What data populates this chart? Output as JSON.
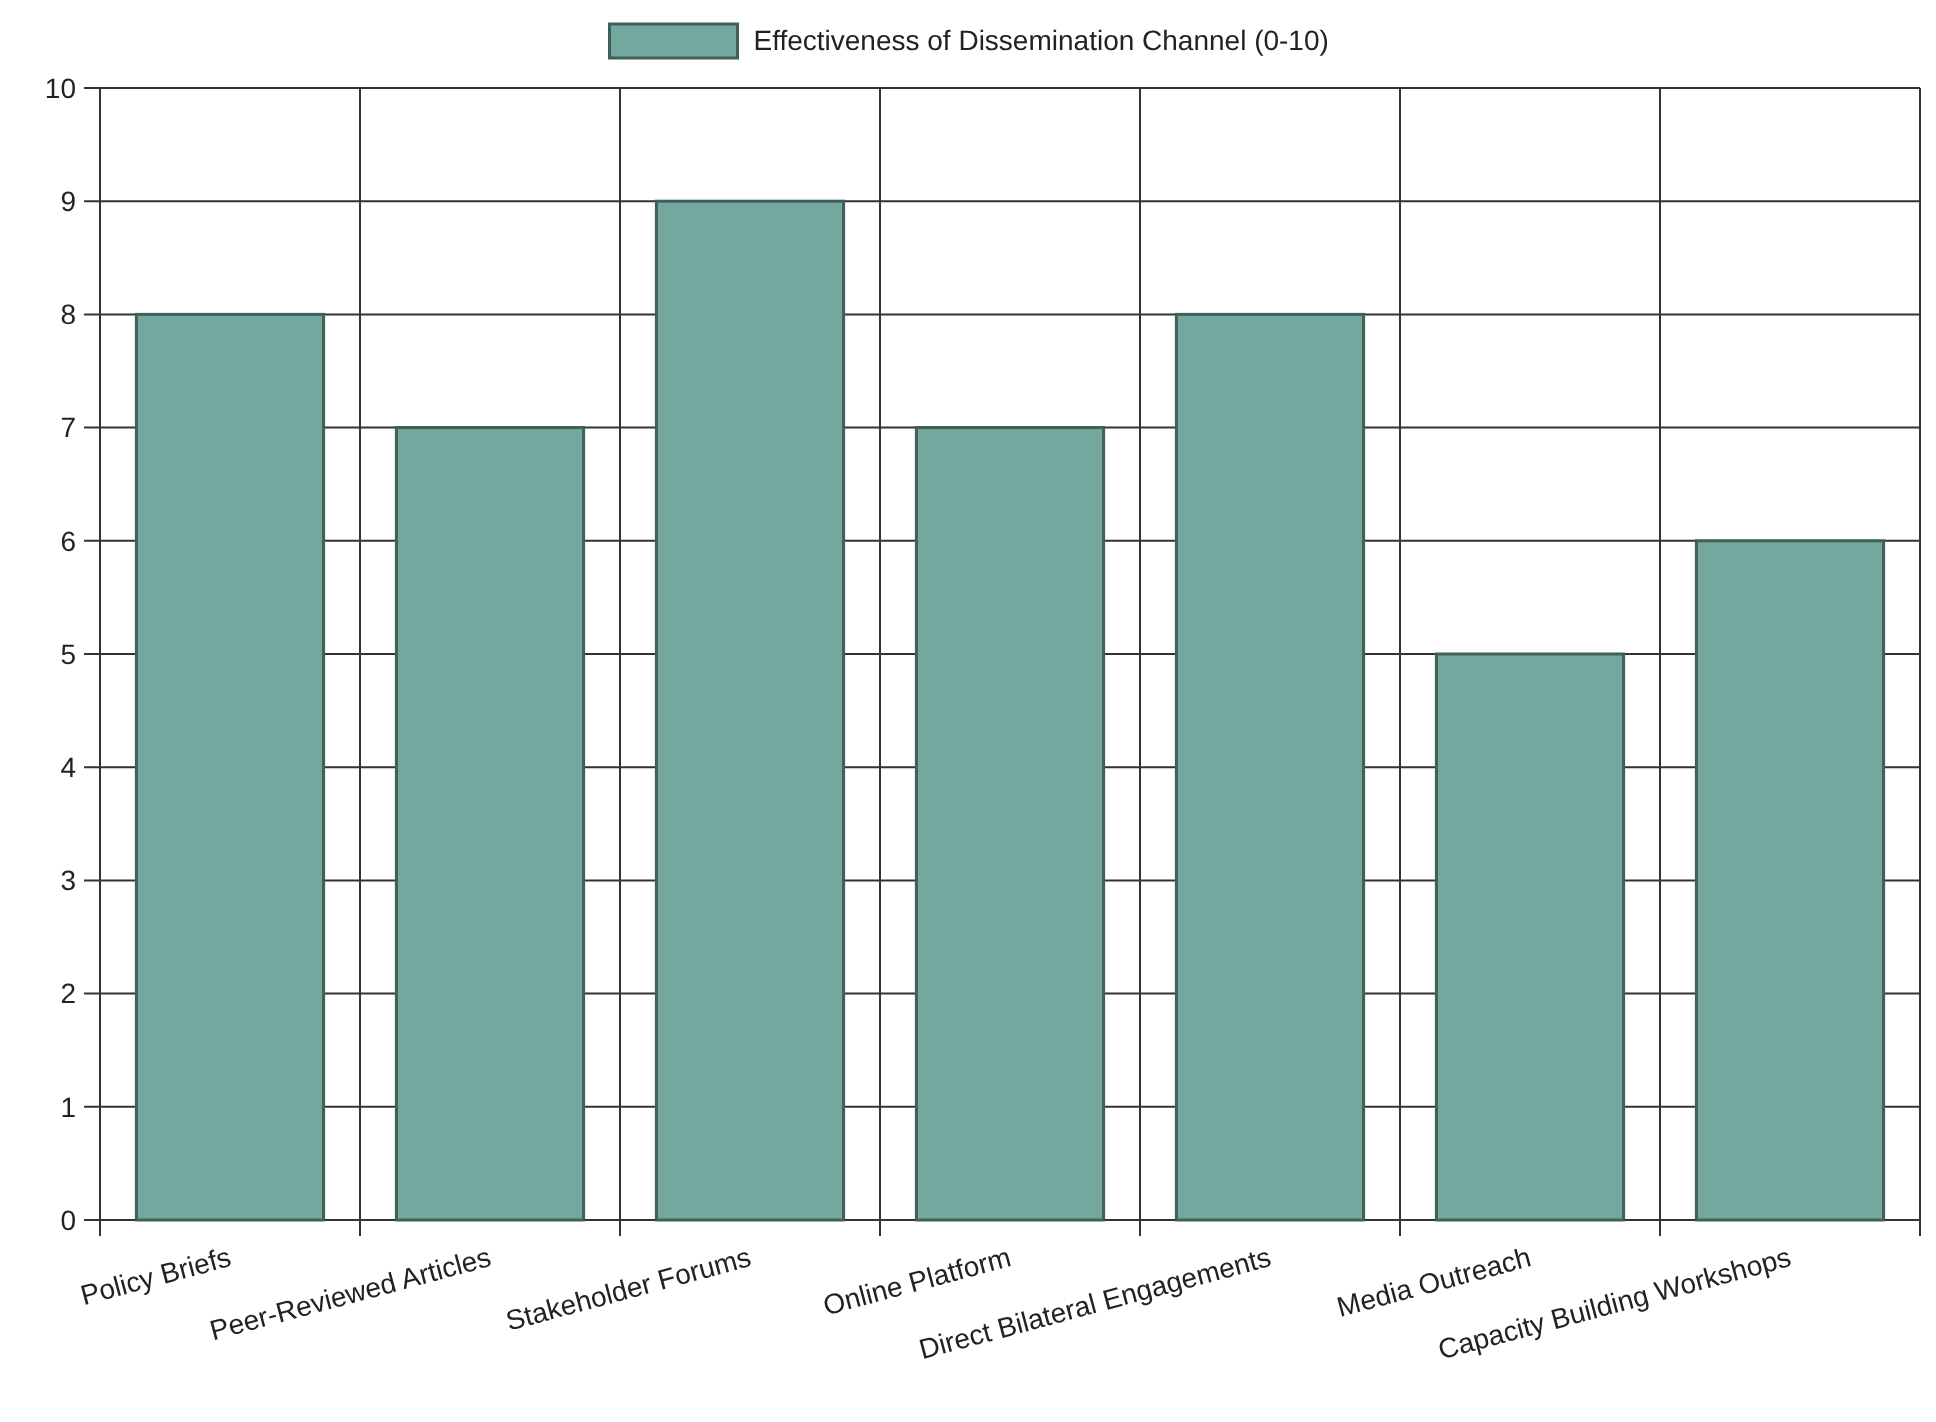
{
  "chart_data": {
    "type": "bar",
    "categories": [
      "Policy Briefs",
      "Peer-Reviewed Articles",
      "Stakeholder Forums",
      "Online Platform",
      "Direct Bilateral Engagements",
      "Media Outreach",
      "Capacity Building Workshops"
    ],
    "series": [
      {
        "name": "Effectiveness of Dissemination Channel (0-10)",
        "color": "#73a89e",
        "values": [
          8,
          7,
          9,
          7,
          8,
          5,
          6
        ]
      }
    ],
    "ylim": [
      0,
      10
    ],
    "yticks": [
      0,
      1,
      2,
      3,
      4,
      5,
      6,
      7,
      8,
      9,
      10
    ],
    "grid": true,
    "legend": "top"
  }
}
